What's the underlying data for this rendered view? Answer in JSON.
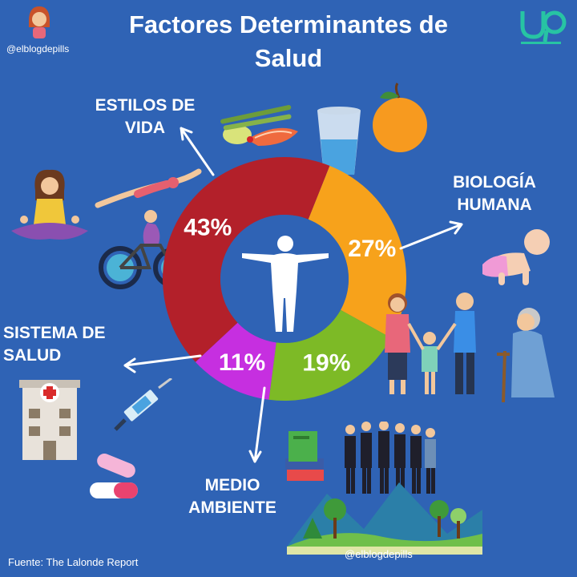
{
  "header": {
    "title_line1": "Factores Determinantes de",
    "title_line2": "Salud",
    "handle_top": "@elblogdepills",
    "handle_bottom": "@elblogdepills",
    "logo_text": "up"
  },
  "footer": {
    "source": "Fuente: The Lalonde Report"
  },
  "labels": {
    "estilos": [
      "ESTILOS DE",
      "VIDA"
    ],
    "biologia": [
      "BIOLOGÍA",
      "HUMANA"
    ],
    "sistema": [
      "SISTEMA DE",
      "SALUD"
    ],
    "medio": [
      "MEDIO",
      "AMBIENTE"
    ]
  },
  "colors": {
    "background": "#2f63b5",
    "estilos": "#b3202a",
    "biologia": "#f7a21b",
    "medio": "#7dba26",
    "sistema": "#c62fe0",
    "inner": "#2f63b5"
  },
  "chart_data": {
    "type": "pie",
    "title": "Factores Determinantes de Salud",
    "categories": [
      "Estilos de vida",
      "Biología humana",
      "Medio ambiente",
      "Sistema de salud"
    ],
    "values": [
      43,
      27,
      19,
      11
    ],
    "value_labels": [
      "43%",
      "27%",
      "19%",
      "11%"
    ],
    "colors": [
      "#b3202a",
      "#f7a21b",
      "#7dba26",
      "#c62fe0"
    ],
    "donut": true
  },
  "icons": [
    "woman-avatar-icon",
    "up-logo-icon",
    "vegetables-icon",
    "water-glass-icon",
    "orange-icon",
    "meditation-icon",
    "swimmer-icon",
    "cyclist-icon",
    "human-body-icon",
    "baby-icon",
    "family-icon",
    "elderly-woman-icon",
    "hospital-icon",
    "syringe-icon",
    "pills-icon",
    "books-icon",
    "business-people-icon",
    "landscape-icon"
  ]
}
